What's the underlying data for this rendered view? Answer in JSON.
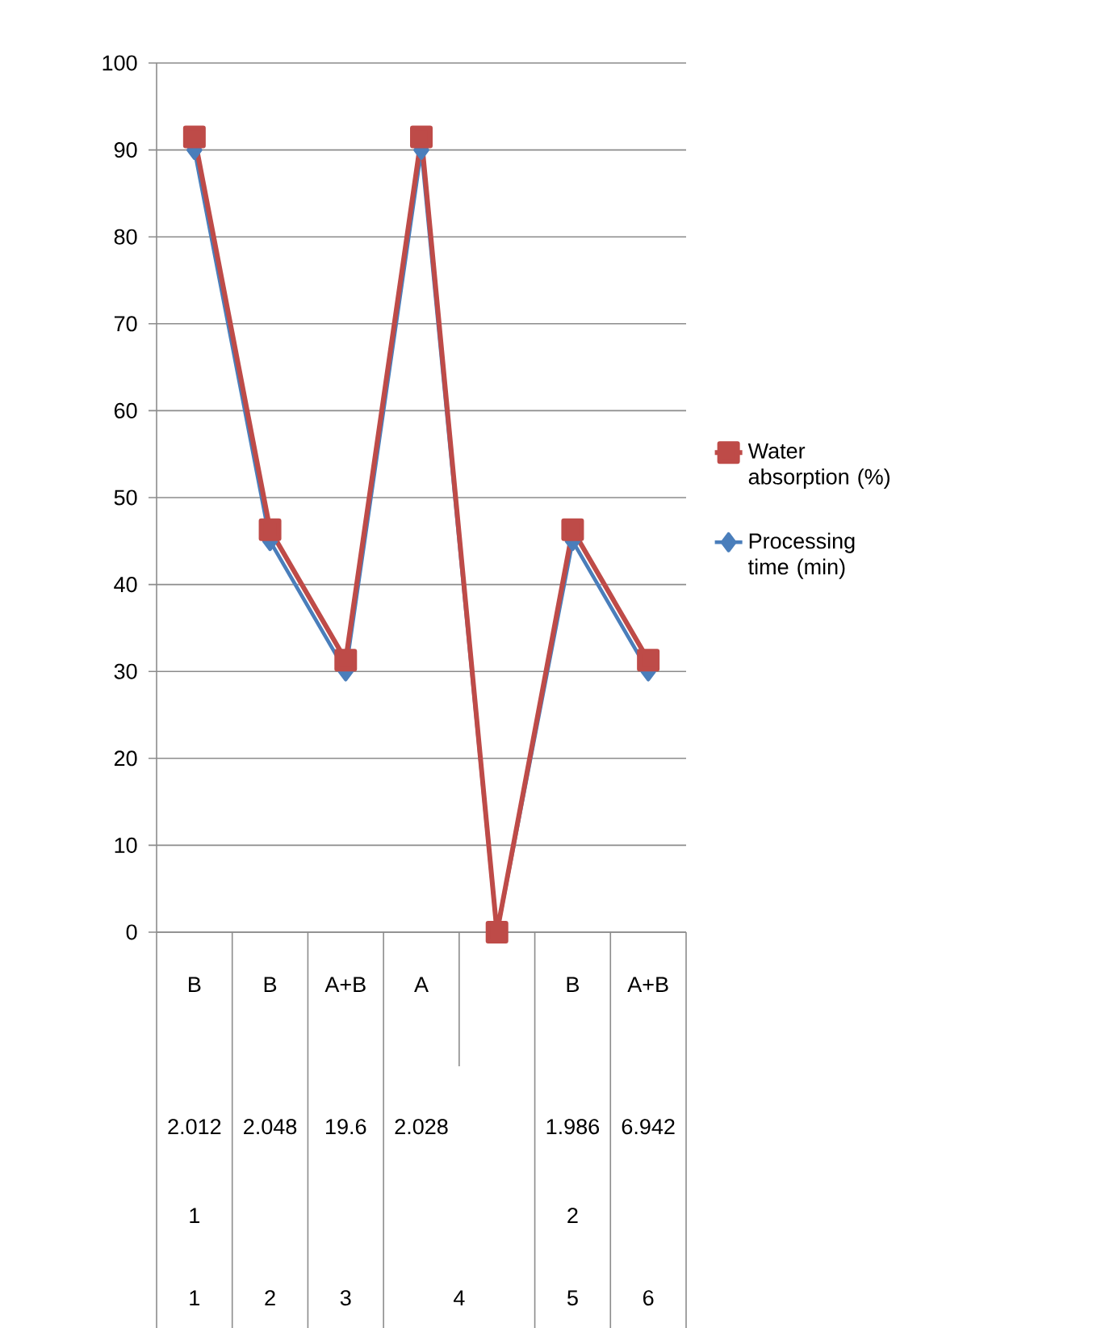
{
  "chart_data": {
    "type": "line",
    "categories": [
      "B",
      "B",
      "A+B",
      "A",
      null,
      "B",
      "A+B"
    ],
    "series": [
      {
        "name": "Water absorption (%)",
        "color": "#be4b48",
        "marker": "square",
        "values": [
          91.5,
          46.3,
          31.3,
          91.5,
          0,
          46.3,
          31.3
        ]
      },
      {
        "name": "Processing time (min)",
        "color": "#4a7ebb",
        "marker": "diamond",
        "values": [
          90,
          45,
          30,
          90,
          0,
          45,
          30
        ]
      }
    ],
    "ylim": [
      0,
      100
    ],
    "yticks": [
      0,
      10,
      20,
      30,
      40,
      50,
      60,
      70,
      80,
      90,
      100
    ],
    "grid": "y",
    "legend": "right",
    "line_style": "solid",
    "annotations": [
      "2.012",
      "2.048",
      "19.6",
      "2.028",
      "1.986",
      "6.942",
      "1",
      "2",
      "1",
      "2",
      "3",
      "4",
      "5",
      "6"
    ]
  }
}
